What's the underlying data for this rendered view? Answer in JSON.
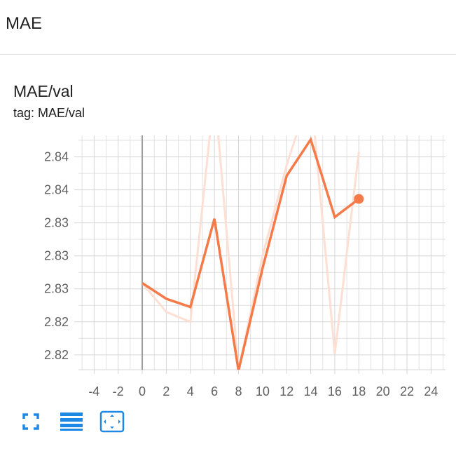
{
  "header": {
    "title": "MAE"
  },
  "card": {
    "title": "MAE/val",
    "tag": "tag: MAE/val"
  },
  "colors": {
    "line": "#f47a49",
    "smoothed_raw": "#fddfd3",
    "grid": "#d6d6d6",
    "zero_axis": "#9e9e9e",
    "toolbar": "#1e88e5"
  },
  "toolbar": {
    "icons": [
      "fullscreen-icon",
      "toggle-log-scale-icon",
      "fit-domain-icon"
    ]
  },
  "chart_data": {
    "type": "line",
    "title": "MAE/val",
    "xlabel": "",
    "ylabel": "",
    "xlim": [
      -5.3,
      25.2
    ],
    "x_ticks": [
      -4,
      -2,
      0,
      2,
      4,
      6,
      8,
      10,
      12,
      14,
      16,
      18,
      20,
      22,
      24
    ],
    "y_ticks": [
      2.818,
      2.822,
      2.826,
      2.83,
      2.834,
      2.838,
      2.842
    ],
    "y_tick_labels": [
      "2.82",
      "2.82",
      "2.83",
      "2.83",
      "2.83",
      "2.84",
      "2.84"
    ],
    "ylim": [
      2.8162,
      2.8446
    ],
    "grid": true,
    "series": [
      {
        "x": [
          0,
          2,
          4,
          6,
          8,
          10,
          12,
          14,
          16,
          18
        ],
        "smoothed": [
          2.8267,
          2.8248,
          2.8238,
          2.8345,
          2.8161,
          2.8285,
          2.8397,
          2.8441,
          2.8347,
          2.8369
        ],
        "raw": [
          2.8267,
          2.8232,
          2.822,
          2.85,
          2.8161,
          2.83,
          2.841,
          2.85,
          2.8181,
          2.8426
        ]
      }
    ]
  }
}
